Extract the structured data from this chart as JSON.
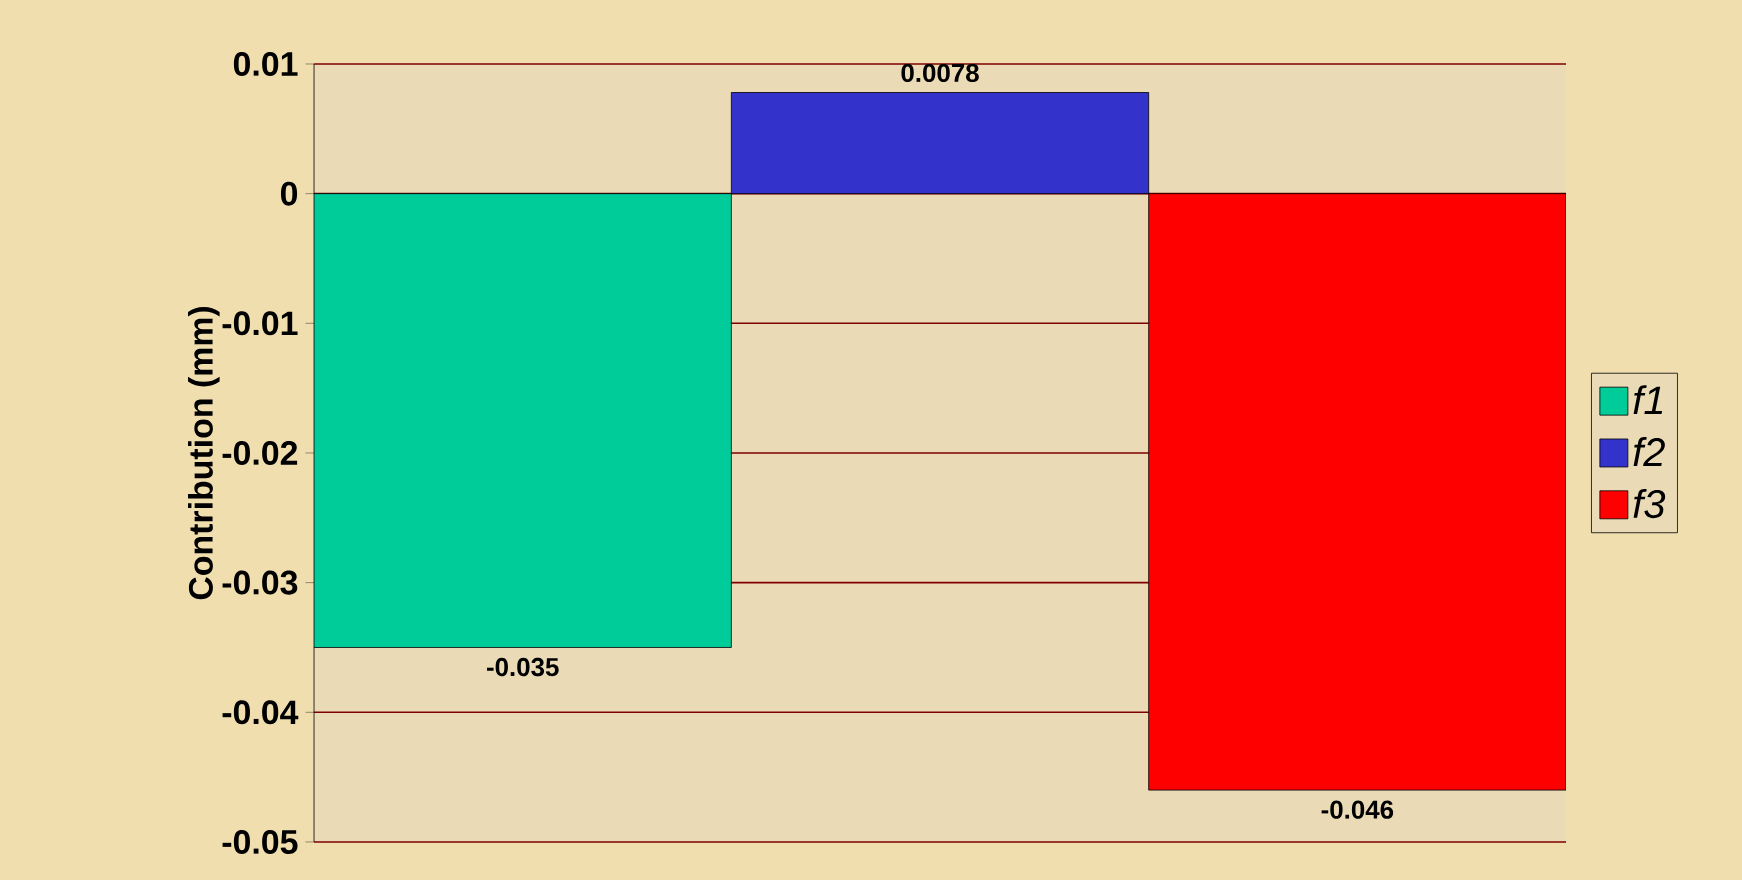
{
  "chart_data": {
    "type": "bar",
    "ylabel": "Contribution (mm)",
    "categories": [
      null
    ],
    "series": [
      {
        "name": "f1",
        "color": "#00cc99",
        "values": [
          -0.035
        ],
        "value_labels": [
          "-0.035"
        ]
      },
      {
        "name": "f2",
        "color": "#3333cc",
        "values": [
          0.0078
        ],
        "value_labels": [
          "0.0078"
        ]
      },
      {
        "name": "f3",
        "color": "#ff0000",
        "values": [
          -0.046
        ],
        "value_labels": [
          "-0.046"
        ]
      }
    ],
    "ylim": [
      -0.05,
      0.01
    ],
    "yticks": [
      -0.05,
      -0.04,
      -0.03,
      -0.02,
      -0.01,
      0,
      0.01
    ],
    "grid": "y",
    "legend": "right"
  }
}
